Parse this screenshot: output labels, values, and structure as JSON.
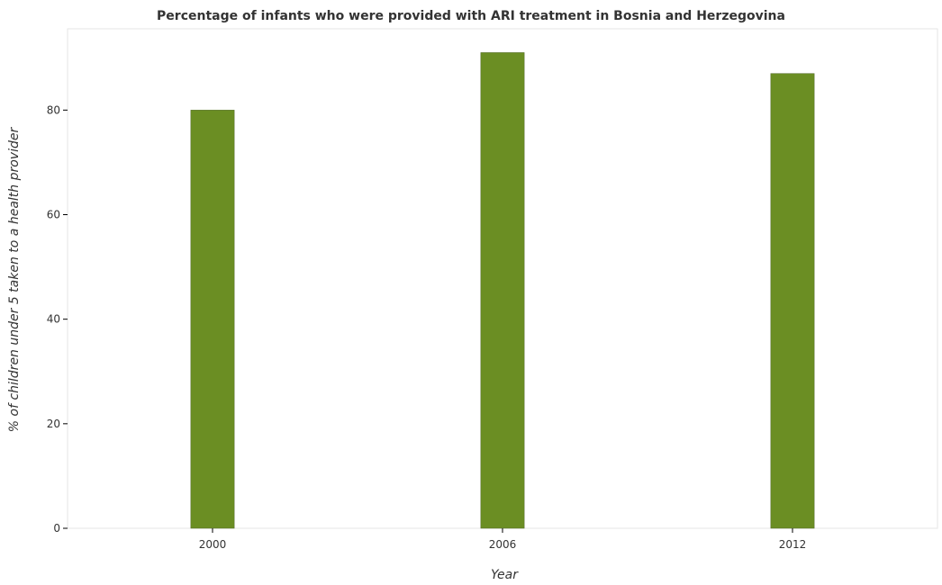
{
  "chart_data": {
    "type": "bar",
    "title": "Percentage of infants who were provided with ARI treatment in Bosnia and Herzegovina",
    "xlabel": "Year",
    "ylabel": "% of children under 5 taken to a health provider",
    "categories": [
      "2000",
      "2006",
      "2012"
    ],
    "values": [
      80,
      91,
      87
    ],
    "ylim": [
      0,
      95.55
    ],
    "yticks": [
      0,
      20,
      40,
      60,
      80
    ],
    "grid": false,
    "legend": "none",
    "bar_color": "#6b8e23",
    "bar_stroke": "#556b2f"
  }
}
